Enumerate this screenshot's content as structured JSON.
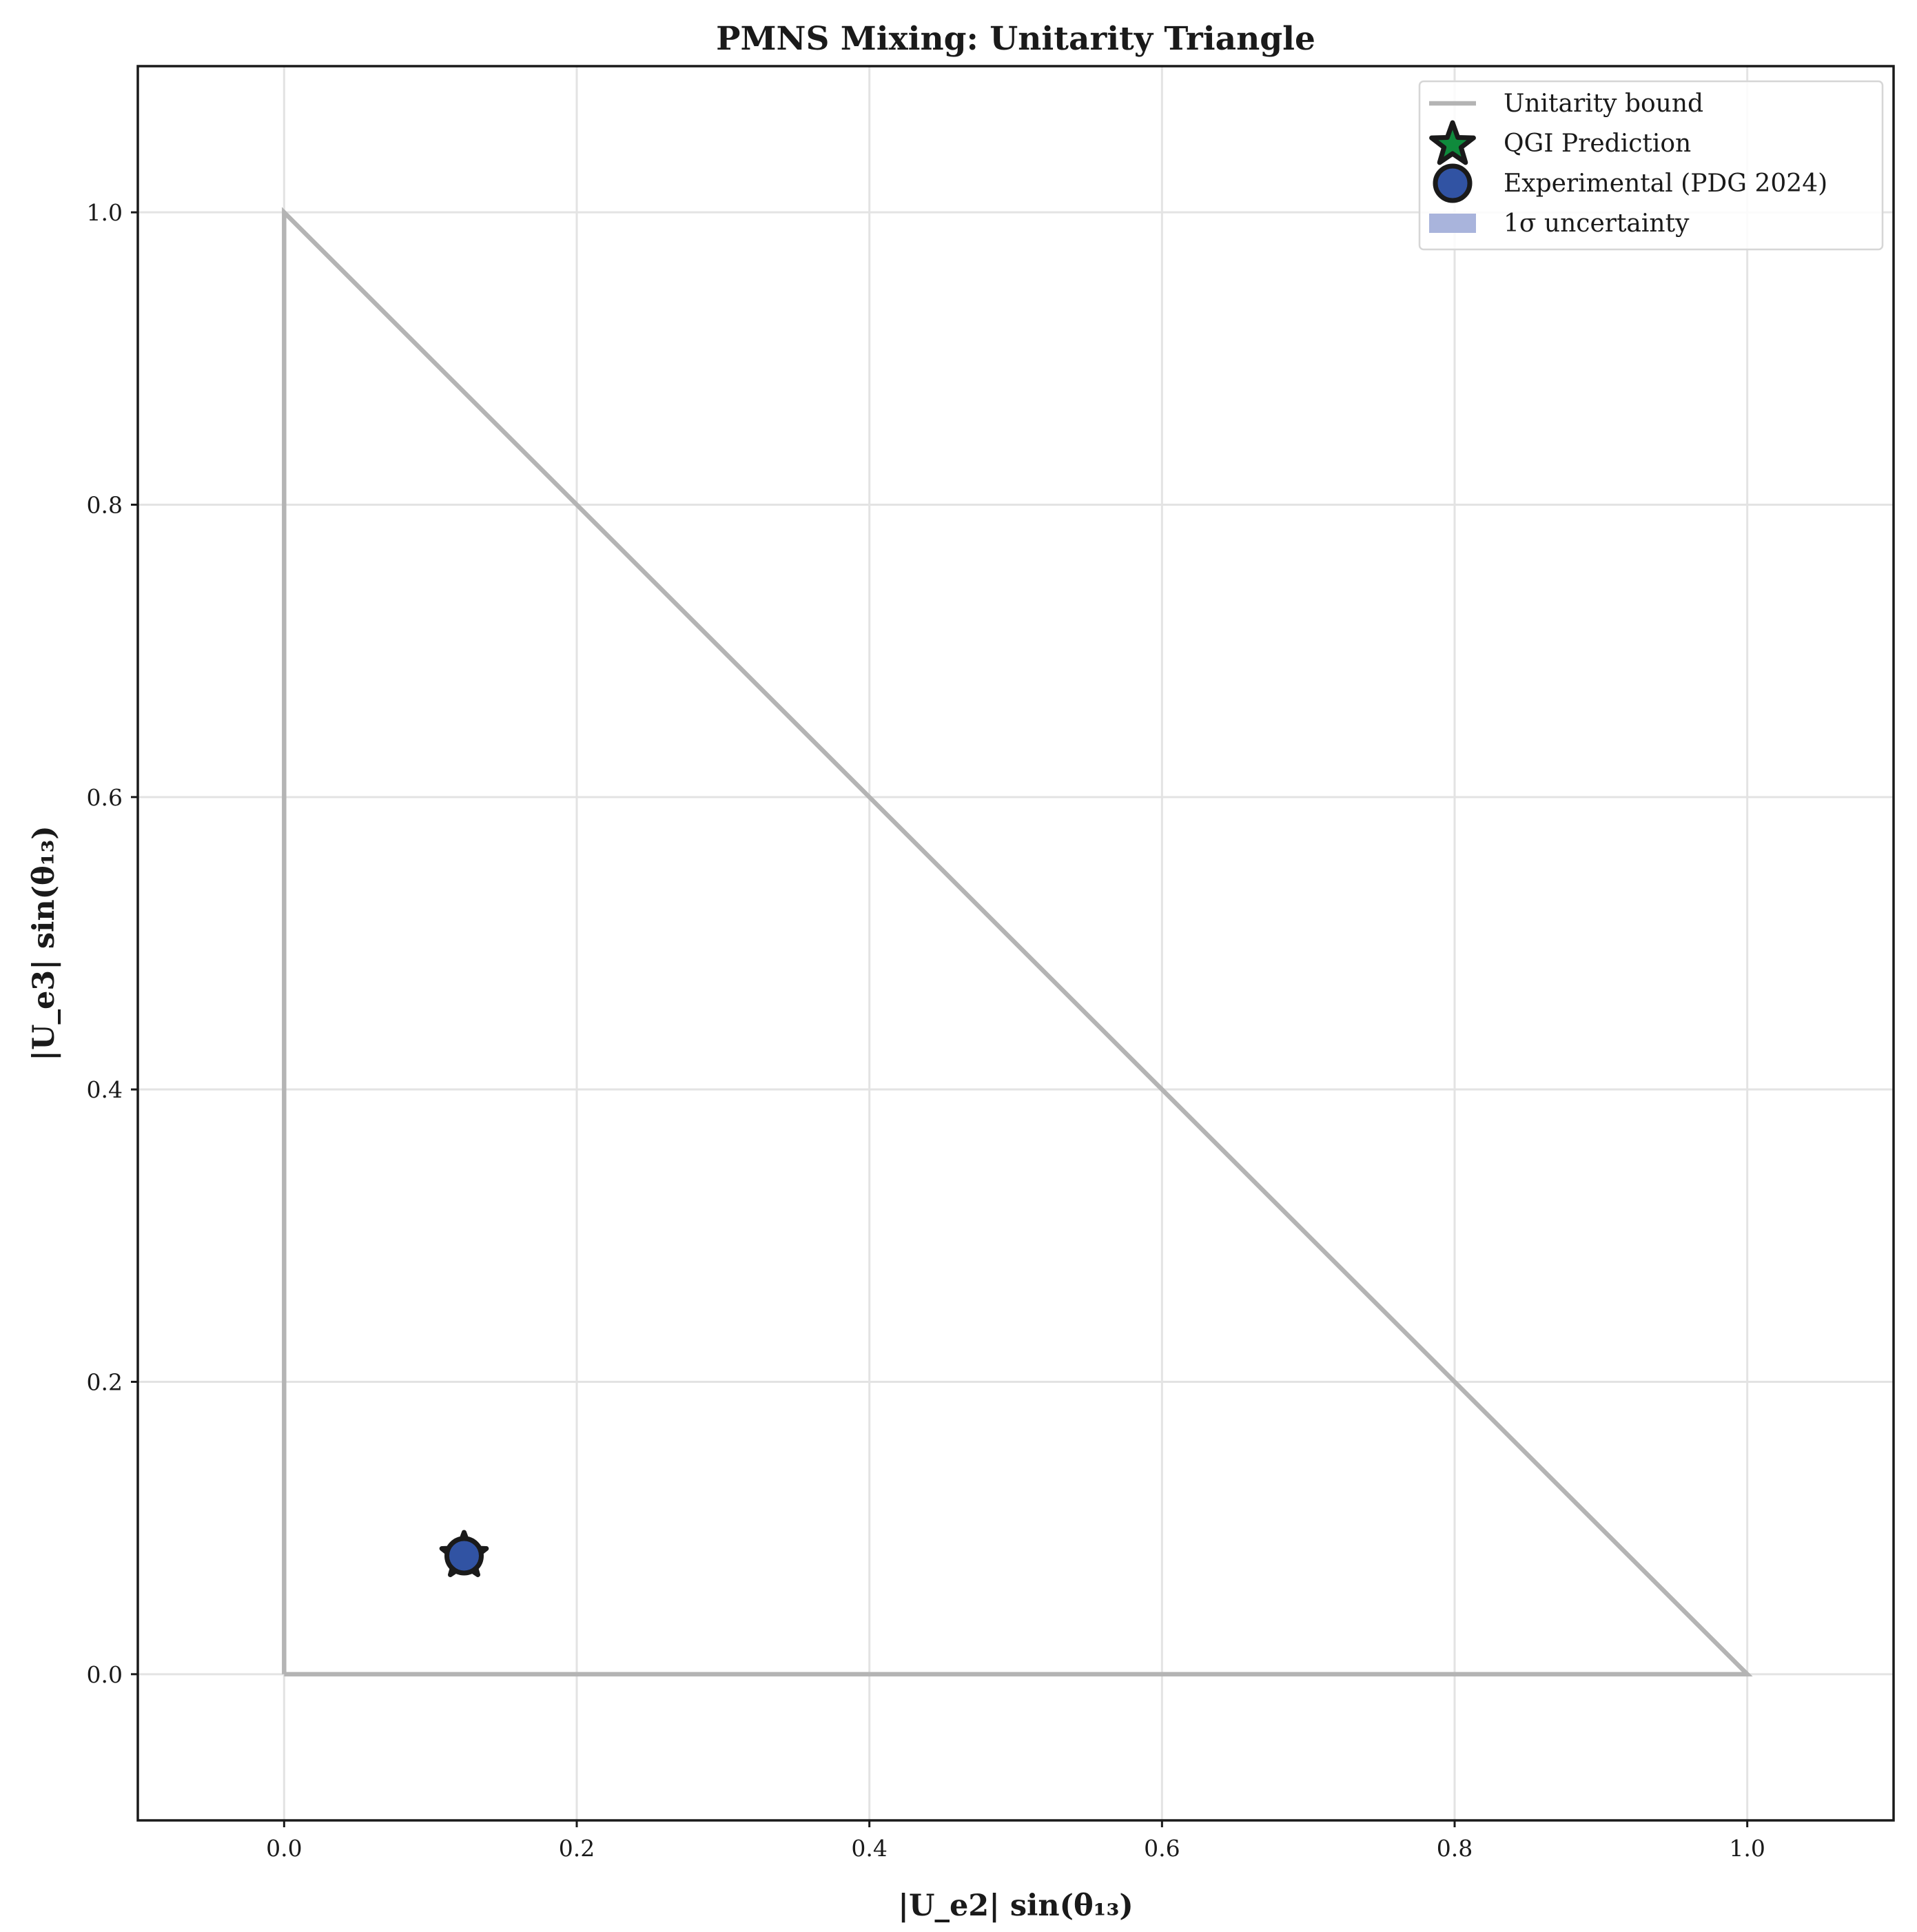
{
  "chart_data": {
    "type": "scatter",
    "title": "PMNS Mixing: Unitarity Triangle",
    "xlabel": "|U_e2| sin(θ₁₃)",
    "ylabel": "|U_e3| sin(θ₁₃)",
    "xlim": [
      -0.1,
      1.1
    ],
    "ylim": [
      -0.1,
      1.1
    ],
    "xticks": [
      0.0,
      0.2,
      0.4,
      0.6,
      0.8,
      1.0
    ],
    "yticks": [
      0.0,
      0.2,
      0.4,
      0.6,
      0.8,
      1.0
    ],
    "xtick_labels": [
      "0.0",
      "0.2",
      "0.4",
      "0.6",
      "0.8",
      "1.0"
    ],
    "ytick_labels": [
      "0.0",
      "0.2",
      "0.4",
      "0.6",
      "0.8",
      "1.0"
    ],
    "grid": true,
    "legend_position": "top-right",
    "series": [
      {
        "name": "Unitarity bound",
        "kind": "line",
        "color": "#b4b4b4",
        "points": [
          [
            0,
            0
          ],
          [
            1,
            0
          ],
          [
            0,
            1
          ],
          [
            0,
            0
          ]
        ]
      },
      {
        "name": "QGI Prediction",
        "kind": "star",
        "color": "#0f8a3c",
        "edge_color": "#1a1a1a",
        "points": [
          [
            0.123,
            0.081
          ]
        ]
      },
      {
        "name": "Experimental (PDG 2024)",
        "kind": "circle",
        "color": "#3153a3",
        "edge_color": "#1a1a1a",
        "points": [
          [
            0.123,
            0.081
          ]
        ]
      },
      {
        "name": "1σ uncertainty",
        "kind": "band",
        "color": "#a9b4dc",
        "points": []
      }
    ]
  }
}
